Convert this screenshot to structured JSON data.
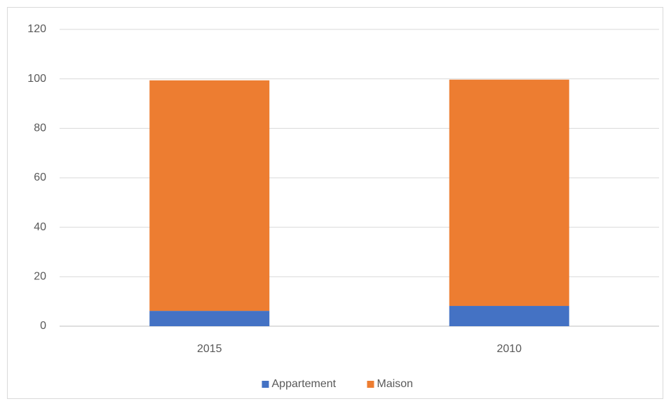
{
  "chart_data": {
    "type": "stacked_bar",
    "categories": [
      "2015",
      "2010"
    ],
    "series": [
      {
        "name": "Appartement",
        "color": "#4472c4",
        "values": [
          6.2,
          8.2
        ]
      },
      {
        "name": "Maison",
        "color": "#ed7d31",
        "values": [
          93.2,
          91.5
        ]
      }
    ],
    "ylim": [
      0,
      120
    ],
    "yticks": [
      0,
      20,
      40,
      60,
      80,
      100,
      120
    ],
    "grid": true,
    "legend": "bottom"
  }
}
